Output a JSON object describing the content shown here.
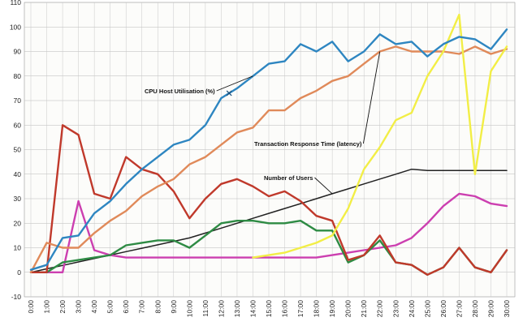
{
  "chart_data": {
    "type": "line",
    "title": "",
    "xlabel": "",
    "ylabel": "",
    "ylim": [
      -10,
      110
    ],
    "yticks": [
      -10,
      0,
      10,
      20,
      30,
      40,
      50,
      60,
      70,
      80,
      90,
      100,
      110
    ],
    "x": [
      "0:00",
      "1:00",
      "2:00",
      "3:00",
      "4:00",
      "5:00",
      "6:00",
      "7:00",
      "8:00",
      "9:00",
      "10:00",
      "11:00",
      "12:00",
      "13:00",
      "14:00",
      "15:00",
      "16:00",
      "17:00",
      "18:00",
      "19:00",
      "20:00",
      "21:00",
      "22:00",
      "23:00",
      "24:00",
      "25:00",
      "26:00",
      "27:00",
      "28:00",
      "29:00",
      "30:00"
    ],
    "grid": true,
    "legend": "none",
    "series": [
      {
        "key": "cpu",
        "color": "#2e86c1",
        "values": [
          1,
          3,
          14,
          15,
          24,
          29,
          36,
          42,
          47,
          52,
          54,
          60,
          71,
          75,
          80,
          85,
          86,
          93,
          90,
          94,
          86,
          90,
          97,
          93,
          94,
          88,
          93,
          96,
          95,
          91,
          99
        ]
      },
      {
        "key": "latency",
        "color": "#e08a5a",
        "values": [
          0,
          12,
          10,
          10,
          16,
          21,
          25,
          31,
          35,
          38,
          44,
          47,
          52,
          57,
          59,
          66,
          66,
          71,
          74,
          78,
          80,
          85,
          90,
          92,
          90,
          90,
          90,
          89,
          92,
          89,
          91
        ]
      },
      {
        "key": "users",
        "color": "#222222",
        "values": [
          0,
          1.4,
          2.8,
          4.2,
          5.6,
          7,
          8.4,
          9.8,
          11.2,
          12.6,
          14,
          16,
          18,
          20,
          22,
          24,
          26,
          28,
          30,
          32,
          34,
          36,
          38,
          40,
          42,
          41.5,
          41.5,
          41.5,
          41.5,
          41.5,
          41.5
        ]
      },
      {
        "key": "red",
        "color": "#c0392b",
        "values": [
          0,
          0,
          60,
          56,
          32,
          30,
          47,
          42,
          40,
          33,
          22,
          30,
          36,
          38,
          35,
          31,
          33,
          29,
          23,
          21,
          5,
          7,
          15,
          4,
          3,
          -1,
          2,
          10,
          2,
          0,
          9
        ]
      },
      {
        "key": "yellow",
        "color": "#f2ee46",
        "values": [
          null,
          null,
          null,
          null,
          null,
          null,
          null,
          null,
          null,
          null,
          null,
          null,
          null,
          null,
          6,
          7,
          8,
          10,
          12,
          15,
          26,
          42,
          51,
          62,
          65,
          80,
          90,
          105,
          40,
          82,
          92
        ]
      },
      {
        "key": "green",
        "color": "#2e8b44",
        "values": [
          0,
          0,
          4,
          5,
          6,
          7,
          11,
          12,
          13,
          13,
          10,
          15,
          20,
          21,
          21,
          20,
          20,
          21,
          17,
          17,
          4,
          7,
          13,
          4,
          3,
          -1,
          2,
          10,
          2,
          0,
          9
        ]
      },
      {
        "key": "magenta",
        "color": "#cc3fb0",
        "values": [
          0,
          0,
          0,
          29,
          9,
          7,
          6,
          6,
          6,
          6,
          6,
          6,
          6,
          6,
          6,
          6,
          6,
          6,
          6,
          7,
          8,
          9,
          10,
          11,
          14,
          20,
          27,
          32,
          31,
          28,
          27
        ]
      }
    ],
    "annotations": [
      {
        "text": "CPU Host Utilisation (%)",
        "points_to": "cpu"
      },
      {
        "text": "Transaction Response Time (latency)",
        "points_to": "latency"
      },
      {
        "text": "Number of Users",
        "points_to": "users"
      }
    ]
  }
}
